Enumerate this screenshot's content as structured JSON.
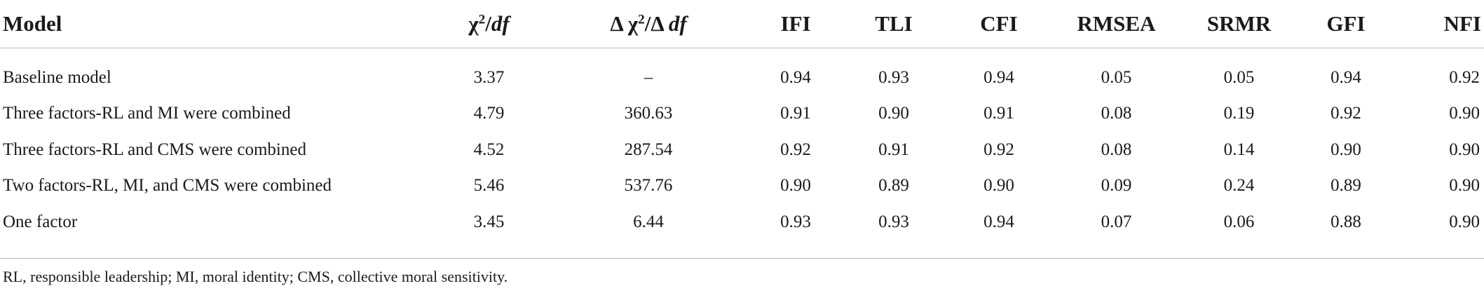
{
  "table": {
    "headers": {
      "model": "Model",
      "chi": {
        "symbol": "χ",
        "sup": "2",
        "slash": "/",
        "df": "df"
      },
      "delta": {
        "d1": "Δ χ",
        "sup": "2",
        "slash": "/Δ ",
        "df": "df"
      },
      "ifi": "IFI",
      "tli": "TLI",
      "cfi": "CFI",
      "rmsea": "RMSEA",
      "srmr": "SRMR",
      "gfi": "GFI",
      "nfi": "NFI"
    },
    "rows": [
      {
        "model": "Baseline model",
        "chi": "3.37",
        "delta": "–",
        "ifi": "0.94",
        "tli": "0.93",
        "cfi": "0.94",
        "rmsea": "0.05",
        "srmr": "0.05",
        "gfi": "0.94",
        "nfi": "0.92"
      },
      {
        "model": "Three factors-RL and MI were combined",
        "chi": "4.79",
        "delta": "360.63",
        "ifi": "0.91",
        "tli": "0.90",
        "cfi": "0.91",
        "rmsea": "0.08",
        "srmr": "0.19",
        "gfi": "0.92",
        "nfi": "0.90"
      },
      {
        "model": "Three factors-RL and CMS were combined",
        "chi": "4.52",
        "delta": "287.54",
        "ifi": "0.92",
        "tli": "0.91",
        "cfi": "0.92",
        "rmsea": "0.08",
        "srmr": "0.14",
        "gfi": "0.90",
        "nfi": "0.90"
      },
      {
        "model": "Two factors-RL, MI, and CMS were combined",
        "chi": "5.46",
        "delta": "537.76",
        "ifi": "0.90",
        "tli": "0.89",
        "cfi": "0.90",
        "rmsea": "0.09",
        "srmr": "0.24",
        "gfi": "0.89",
        "nfi": "0.90"
      },
      {
        "model": "One factor",
        "chi": "3.45",
        "delta": "6.44",
        "ifi": "0.93",
        "tli": "0.93",
        "cfi": "0.94",
        "rmsea": "0.07",
        "srmr": "0.06",
        "gfi": "0.88",
        "nfi": "0.90"
      }
    ]
  },
  "footnote": "RL, responsible leadership; MI, moral identity; CMS, collective moral sensitivity."
}
